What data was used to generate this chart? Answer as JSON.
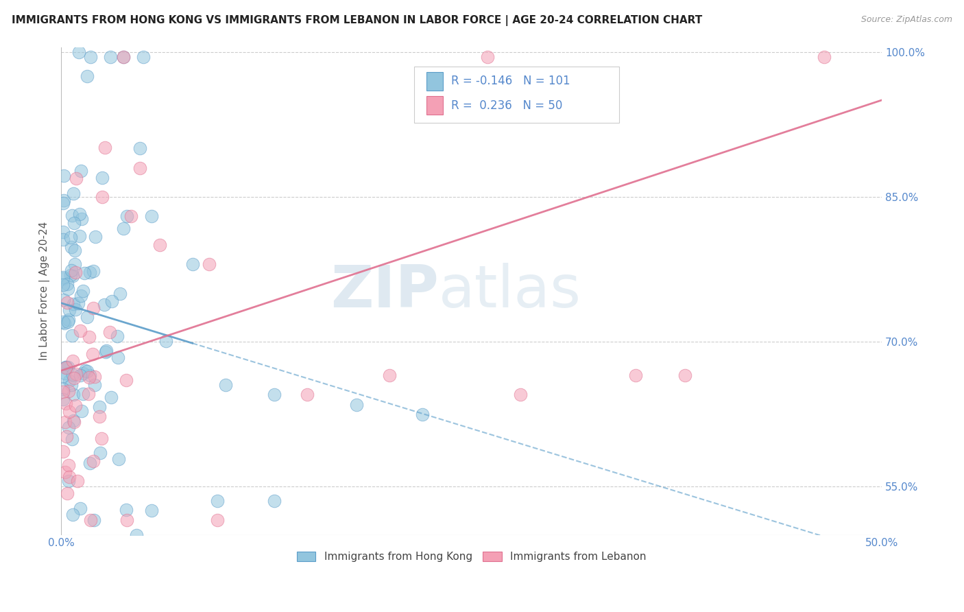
{
  "title": "IMMIGRANTS FROM HONG KONG VS IMMIGRANTS FROM LEBANON IN LABOR FORCE | AGE 20-24 CORRELATION CHART",
  "source": "Source: ZipAtlas.com",
  "ylabel": "In Labor Force | Age 20-24",
  "legend_label1": "Immigrants from Hong Kong",
  "legend_label2": "Immigrants from Lebanon",
  "r1": -0.146,
  "n1": 101,
  "r2": 0.236,
  "n2": 50,
  "color1": "#92c5de",
  "color2": "#f4a0b5",
  "color1_line": "#5b9dc9",
  "color2_line": "#e07090",
  "xmin": 0.0,
  "xmax": 0.5,
  "ymin": 0.5,
  "ymax": 1.005,
  "watermark_zip": "ZIP",
  "watermark_atlas": "atlas",
  "background_color": "#ffffff",
  "grid_color": "#cccccc",
  "tick_color": "#5588cc",
  "axis_label_color": "#555555",
  "yticks": [
    0.55,
    0.7,
    0.85,
    1.0
  ],
  "ytick_labels": [
    "55.0%",
    "70.0%",
    "85.0%",
    "100.0%"
  ],
  "xtick_left_label": "0.0%",
  "xtick_right_label": "50.0%"
}
